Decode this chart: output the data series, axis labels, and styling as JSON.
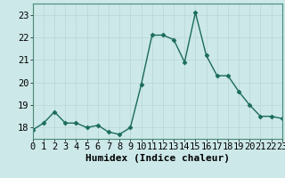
{
  "x": [
    0,
    1,
    2,
    3,
    4,
    5,
    6,
    7,
    8,
    9,
    10,
    11,
    12,
    13,
    14,
    15,
    16,
    17,
    18,
    19,
    20,
    21,
    22,
    23
  ],
  "y": [
    17.9,
    18.2,
    18.7,
    18.2,
    18.2,
    18.0,
    18.1,
    17.8,
    17.7,
    18.0,
    19.9,
    22.1,
    22.1,
    21.9,
    20.9,
    23.1,
    21.2,
    20.3,
    20.3,
    19.6,
    19.0,
    18.5,
    18.5,
    18.4
  ],
  "xlabel": "Humidex (Indice chaleur)",
  "xlim": [
    0,
    23
  ],
  "ylim": [
    17.5,
    23.5
  ],
  "yticks": [
    18,
    19,
    20,
    21,
    22,
    23
  ],
  "xticks": [
    0,
    1,
    2,
    3,
    4,
    5,
    6,
    7,
    8,
    9,
    10,
    11,
    12,
    13,
    14,
    15,
    16,
    17,
    18,
    19,
    20,
    21,
    22,
    23
  ],
  "line_color": "#1a6b5a",
  "bg_color": "#cce8e8",
  "grid_color": "#b8d4d4",
  "marker_size": 2.5,
  "line_width": 1.0,
  "tick_fontsize": 7.5,
  "xlabel_fontsize": 8.0
}
